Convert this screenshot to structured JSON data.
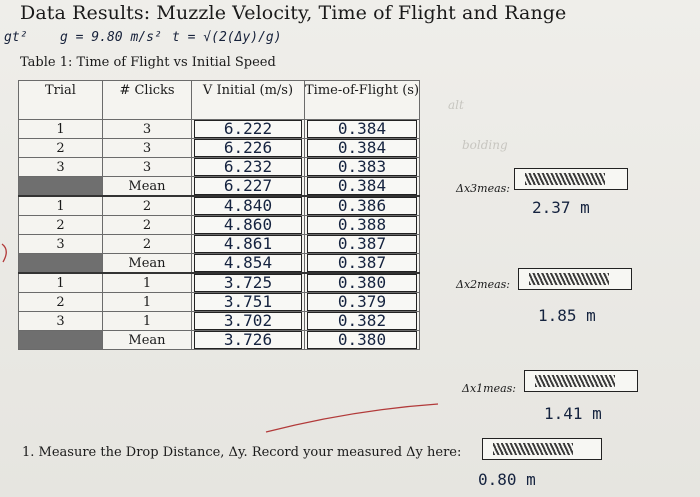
{
  "title": "Data Results: Muzzle Velocity, Time of Flight and Range",
  "notes": {
    "left": "gt²",
    "gravity": "g = 9.80 m/s²",
    "formula": "t = √(2(Δy)/g)"
  },
  "caption": "Table 1: Time of Flight vs Initial Speed",
  "table": {
    "headers": [
      "Trial",
      "# Clicks",
      "V Initial (m/s)",
      "Time-of-Flight (s)"
    ],
    "groups": [
      {
        "rows": [
          {
            "trial": "1",
            "clicks": "3",
            "v": "6.222",
            "t": "0.384"
          },
          {
            "trial": "2",
            "clicks": "3",
            "v": "6.226",
            "t": "0.384"
          },
          {
            "trial": "3",
            "clicks": "3",
            "v": "6.232",
            "t": "0.383"
          }
        ],
        "mean": {
          "label": "Mean",
          "v": "6.227",
          "t": "0.384"
        }
      },
      {
        "rows": [
          {
            "trial": "1",
            "clicks": "2",
            "v": "4.840",
            "t": "0.386"
          },
          {
            "trial": "2",
            "clicks": "2",
            "v": "4.860",
            "t": "0.388"
          },
          {
            "trial": "3",
            "clicks": "2",
            "v": "4.861",
            "t": "0.387"
          }
        ],
        "mean": {
          "label": "Mean",
          "v": "4.854",
          "t": "0.387"
        }
      },
      {
        "rows": [
          {
            "trial": "1",
            "clicks": "1",
            "v": "3.725",
            "t": "0.380"
          },
          {
            "trial": "2",
            "clicks": "1",
            "v": "3.751",
            "t": "0.379"
          },
          {
            "trial": "3",
            "clicks": "1",
            "v": "3.702",
            "t": "0.382"
          }
        ],
        "mean": {
          "label": "Mean",
          "v": "3.726",
          "t": "0.380"
        }
      }
    ]
  },
  "measured": [
    {
      "label": "Δx3meas:",
      "value": "2.37 m"
    },
    {
      "label": "Δx2meas:",
      "value": "1.85 m"
    },
    {
      "label": "Δx1meas:",
      "value": "1.41 m"
    }
  ],
  "footer": {
    "text": "1. Measure the Drop Distance, Δy. Record your measured Δy here:",
    "value": "0.80 m"
  },
  "faint_text": [
    "alt",
    "bolding"
  ]
}
